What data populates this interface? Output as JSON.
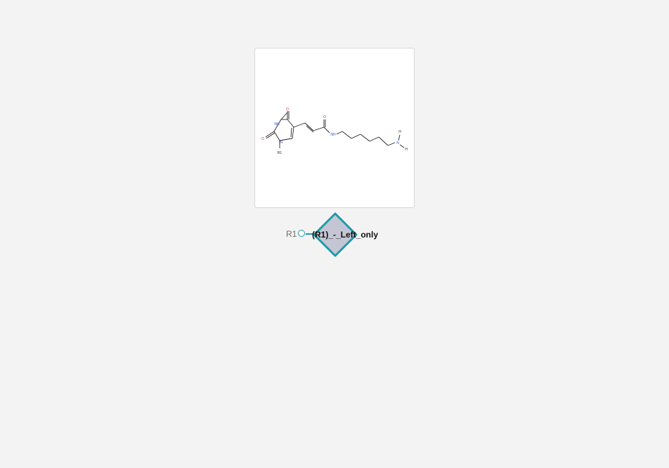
{
  "colors": {
    "background": "#f3f3f3",
    "card_background": "#ffffff",
    "card_border": "#d6d6d6",
    "monomer_fill": "#c4c6d4",
    "monomer_stroke": "#1e9aa8",
    "oxygen_label": "#d22222",
    "nitrogen_label": "#3050d0",
    "bond": "#222222"
  },
  "structure": {
    "atom_labels": {
      "o_top": "O",
      "nh_ring": "NH",
      "o_left": "O",
      "n_ring": "N",
      "r1": "R1",
      "o_amide": "O",
      "nh_amide": "NH",
      "n_terminal": "N",
      "h_top": "H",
      "h_bottom": "H"
    }
  },
  "monomer": {
    "rgroup_label": "R1",
    "name": "(R1)_-_Left_only",
    "shape_icon": "diamond-icon"
  }
}
